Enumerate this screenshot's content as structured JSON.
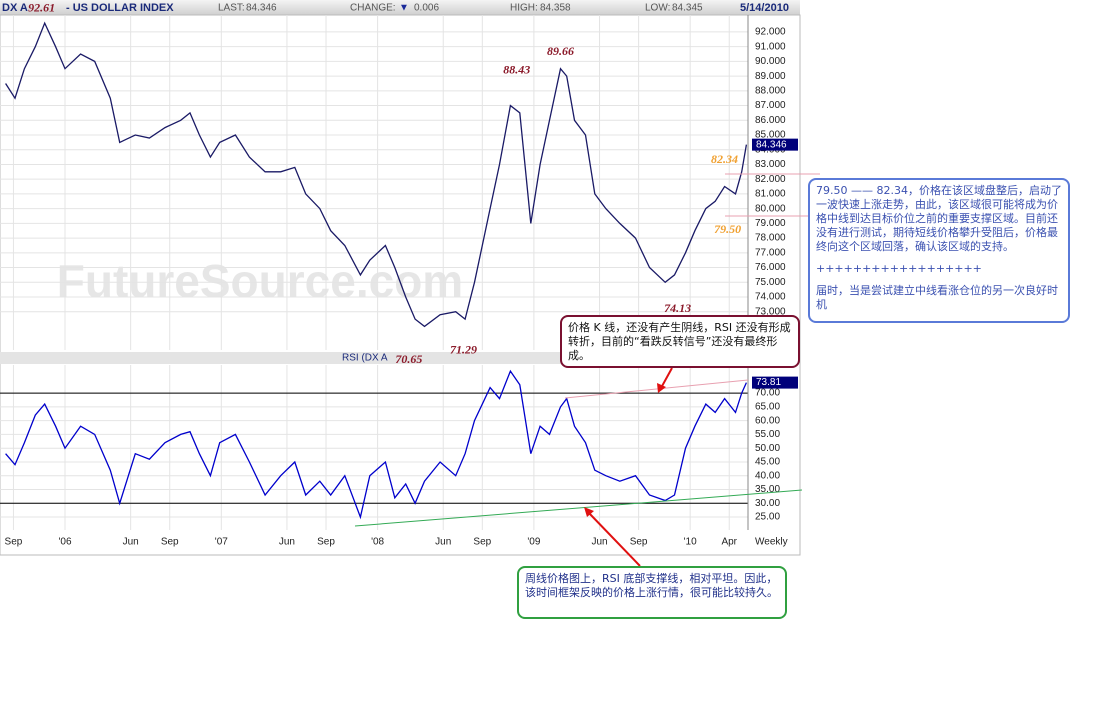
{
  "header": {
    "symbol": "DX A",
    "title": "- US DOLLAR INDEX",
    "last_label": "LAST:",
    "last": 84.346,
    "change_label": "CHANGE:",
    "change_symbol": "▼",
    "change": 0.006,
    "high_label": "HIGH:",
    "high": 84.358,
    "low_label": "LOW:",
    "low": 84.345,
    "date": "5/14/2010",
    "watermark": "FutureSource.com"
  },
  "chart_data": [
    {
      "type": "line",
      "color": "#1a1a66",
      "x": [
        2005.62,
        2005.68,
        2005.74,
        2005.81,
        2005.87,
        2005.94,
        2006.0,
        2006.1,
        2006.19,
        2006.29,
        2006.35,
        2006.45,
        2006.54,
        2006.64,
        2006.74,
        2006.8,
        2006.86,
        2006.93,
        2006.99,
        2007.09,
        2007.18,
        2007.28,
        2007.38,
        2007.47,
        2007.54,
        2007.63,
        2007.7,
        2007.79,
        2007.89,
        2007.95,
        2008.05,
        2008.11,
        2008.18,
        2008.24,
        2008.3,
        2008.4,
        2008.5,
        2008.56,
        2008.62,
        2008.72,
        2008.78,
        2008.85,
        2008.91,
        2008.98,
        2009.04,
        2009.1,
        2009.17,
        2009.21,
        2009.26,
        2009.33,
        2009.39,
        2009.46,
        2009.55,
        2009.65,
        2009.74,
        2009.84,
        2009.9,
        2009.97,
        2010.03,
        2010.1,
        2010.16,
        2010.22,
        2010.29,
        2010.33,
        2010.36
      ],
      "values": [
        88.5,
        87.5,
        89.5,
        91,
        92.6,
        91,
        89.5,
        90.5,
        90,
        87.5,
        84.5,
        85,
        84.8,
        85.5,
        86,
        86.5,
        85,
        83.5,
        84.5,
        85,
        83.5,
        82.5,
        82.5,
        82.8,
        81,
        80,
        78.5,
        77.5,
        75.5,
        76.5,
        77.5,
        76,
        74,
        72.5,
        72,
        72.8,
        73,
        72.5,
        75,
        80,
        83,
        87,
        86.5,
        79,
        83,
        86,
        89.5,
        89,
        86,
        85,
        81,
        80,
        79,
        78,
        76,
        75,
        75.5,
        77,
        78.5,
        80,
        80.5,
        81.5,
        81,
        82.5,
        84.346
      ],
      "ylim": [
        70.4,
        93.15
      ],
      "yticks": [
        {
          "value": 73,
          "label": "73.000"
        },
        {
          "value": 74,
          "label": "74.000"
        },
        {
          "value": 75,
          "label": "75.000"
        },
        {
          "value": 76,
          "label": "76.000"
        },
        {
          "value": 77,
          "label": "77.000"
        },
        {
          "value": 78,
          "label": "78.000"
        },
        {
          "value": 79,
          "label": "79.000"
        },
        {
          "value": 80,
          "label": "80.000"
        },
        {
          "value": 81,
          "label": "81.000"
        },
        {
          "value": 82,
          "label": "82.000"
        },
        {
          "value": 83,
          "label": "83.000"
        },
        {
          "value": 84,
          "label": "84.000"
        },
        {
          "value": 85,
          "label": "85.000"
        },
        {
          "value": 86,
          "label": "86.000"
        },
        {
          "value": 87,
          "label": "87.000"
        },
        {
          "value": 88,
          "label": "88.000"
        },
        {
          "value": 89,
          "label": "89.000"
        },
        {
          "value": 90,
          "label": "90.000"
        },
        {
          "value": 91,
          "label": "91.000"
        },
        {
          "value": 92,
          "label": "92.000"
        }
      ],
      "grid": true,
      "annotations": [
        {
          "value": 92.61,
          "x": 2005.85,
          "position": "above",
          "color": "#8b1a2a"
        },
        {
          "value": 88.43,
          "x": 2008.89,
          "position": "above",
          "color": "#8b1a2a"
        },
        {
          "value": 89.66,
          "x": 2009.17,
          "position": "above",
          "color": "#8b1a2a"
        },
        {
          "value": 82.34,
          "x": 2010.22,
          "position": "above",
          "color": "#f0a030"
        },
        {
          "value": 79.5,
          "label": "79.50",
          "x": 2010.24,
          "position": "below",
          "color": "#f0a030"
        },
        {
          "value": 74.13,
          "x": 2009.92,
          "position": "below",
          "color": "#8b1a2a"
        },
        {
          "value": 70.65,
          "x": 2008.2,
          "position": "below",
          "color": "#8b1a2a"
        },
        {
          "value": 71.29,
          "x": 2008.55,
          "position": "below",
          "color": "#8b1a2a"
        }
      ]
    },
    {
      "type": "line",
      "title": "RSI (DX A",
      "color": "#0000cc",
      "period": "Weekly",
      "x": [
        2005.62,
        2005.68,
        2005.74,
        2005.81,
        2005.87,
        2005.94,
        2006.0,
        2006.1,
        2006.19,
        2006.29,
        2006.35,
        2006.45,
        2006.54,
        2006.64,
        2006.74,
        2006.8,
        2006.86,
        2006.93,
        2006.99,
        2007.09,
        2007.18,
        2007.28,
        2007.38,
        2007.47,
        2007.54,
        2007.63,
        2007.7,
        2007.79,
        2007.89,
        2007.95,
        2008.05,
        2008.11,
        2008.18,
        2008.24,
        2008.3,
        2008.4,
        2008.5,
        2008.56,
        2008.62,
        2008.72,
        2008.78,
        2008.85,
        2008.91,
        2008.98,
        2009.04,
        2009.1,
        2009.17,
        2009.21,
        2009.26,
        2009.33,
        2009.39,
        2009.46,
        2009.55,
        2009.65,
        2009.74,
        2009.84,
        2009.9,
        2009.97,
        2010.03,
        2010.1,
        2010.16,
        2010.22,
        2010.29,
        2010.33,
        2010.36
      ],
      "values": [
        48,
        44,
        52,
        62,
        66,
        58,
        50,
        58,
        55,
        42,
        30,
        48,
        46,
        52,
        55,
        56,
        48,
        40,
        52,
        55,
        45,
        33,
        40,
        45,
        33,
        38,
        33,
        40,
        25,
        40,
        45,
        32,
        37,
        30,
        38,
        45,
        40,
        48,
        60,
        72,
        68,
        78,
        73,
        48,
        58,
        55,
        65,
        68,
        58,
        52,
        42,
        40,
        38,
        40,
        33,
        31,
        33,
        50,
        58,
        66,
        63,
        68,
        63,
        70,
        73.81
      ],
      "ylim": [
        20.3,
        80.2
      ],
      "yticks": [
        {
          "value": 25,
          "label": "25.00"
        },
        {
          "value": 30,
          "label": "30.00"
        },
        {
          "value": 35,
          "label": "35.00"
        },
        {
          "value": 40,
          "label": "40.00"
        },
        {
          "value": 45,
          "label": "45.00"
        },
        {
          "value": 50,
          "label": "50.00"
        },
        {
          "value": 55,
          "label": "55.00"
        },
        {
          "value": 60,
          "label": "60.00"
        },
        {
          "value": 65,
          "label": "65.00"
        },
        {
          "value": 70,
          "label": "70.00"
        }
      ],
      "reference_lines": [
        70,
        30
      ],
      "grid": true,
      "xlim": [
        2005.584,
        2010.37
      ],
      "xticks": [
        {
          "value": 2005.67,
          "label": "Sep"
        },
        {
          "value": 2006.0,
          "label": "'06"
        },
        {
          "value": 2006.42,
          "label": "Jun"
        },
        {
          "value": 2006.67,
          "label": "Sep"
        },
        {
          "value": 2007.0,
          "label": "'07"
        },
        {
          "value": 2007.42,
          "label": "Jun"
        },
        {
          "value": 2007.67,
          "label": "Sep"
        },
        {
          "value": 2008.0,
          "label": "'08"
        },
        {
          "value": 2008.42,
          "label": "Jun"
        },
        {
          "value": 2008.67,
          "label": "Sep"
        },
        {
          "value": 2009.0,
          "label": "'09"
        },
        {
          "value": 2009.42,
          "label": "Jun"
        },
        {
          "value": 2009.67,
          "label": "Sep"
        },
        {
          "value": 2010.0,
          "label": "'10"
        },
        {
          "value": 2010.25,
          "label": "Apr"
        }
      ]
    }
  ],
  "callouts": [
    {
      "lines": [
        "79.50 —— 82.34，价格在该区域盘整后，启动了一波快速上涨走势，由此，该区域很可能将成为价格中线到达目标价位之前的重要支撑区域。目前还没有进行测试，期待短线价格攀升受阻后，价格最终向这个区域回落，确认该区域的支持。",
        "++++++++++++++++++",
        "届时，当是尝试建立中线看涨仓位的另一次良好时机"
      ]
    },
    {
      "lines": [
        "价格 K 线，还没有产生阴线，RSI 还没有形成转折，目前的“看跌反转信号”还没有最终形成。"
      ]
    },
    {
      "lines": [
        "周线价格图上，RSI 底部支撑线，相对平坦。因此，该时间框架反映的价格上涨行情，很可能比较持久。"
      ]
    }
  ]
}
